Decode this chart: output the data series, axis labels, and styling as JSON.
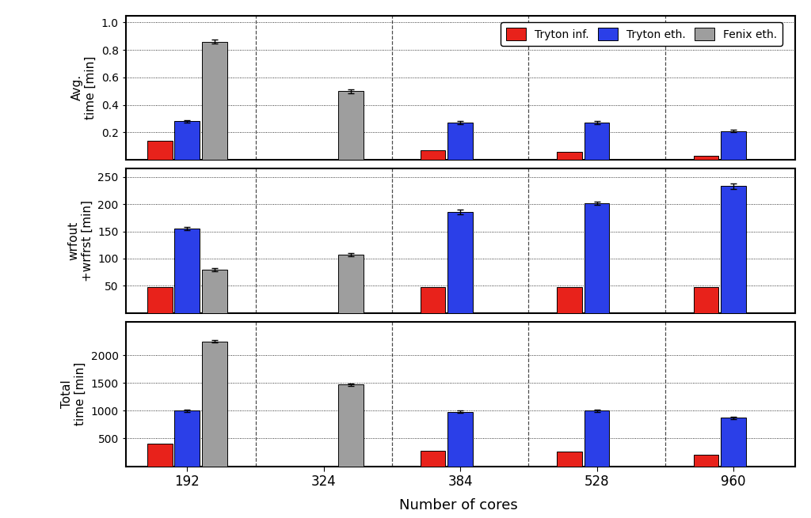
{
  "cores": [
    192,
    324,
    384,
    528,
    960
  ],
  "panel1_ylabel": "Avg.\ntime [min]",
  "panel2_ylabel": "wrfout\n+wrfrst [min]",
  "panel3_ylabel": "Total\ntime [min]",
  "xlabel": "Number of cores",
  "legend_labels": [
    "Tryton inf.",
    "Tryton eth.",
    "Fenix eth."
  ],
  "bar_colors": [
    "#e8221b",
    "#2b3fe8",
    "#9e9e9e"
  ],
  "panel1_data": {
    "tryton_inf": [
      0.14,
      null,
      0.07,
      0.06,
      0.03
    ],
    "tryton_eth": [
      0.28,
      null,
      0.27,
      0.27,
      0.21
    ],
    "fenix_eth": [
      0.86,
      0.5,
      null,
      null,
      null
    ]
  },
  "panel2_data": {
    "tryton_inf": [
      47.0,
      null,
      47.0,
      47.0,
      47.0
    ],
    "tryton_eth": [
      155.0,
      null,
      186.0,
      202.0,
      233.0
    ],
    "fenix_eth": [
      80.0,
      107.0,
      null,
      null,
      null
    ]
  },
  "panel3_data": {
    "tryton_inf": [
      400.0,
      null,
      280.0,
      260.0,
      200.0
    ],
    "tryton_eth": [
      1000.0,
      null,
      980.0,
      1000.0,
      870.0
    ],
    "fenix_eth": [
      2250.0,
      1470.0,
      null,
      null,
      null
    ]
  },
  "panel1_ylim": [
    0,
    1.05
  ],
  "panel1_yticks": [
    0.2,
    0.4,
    0.6,
    0.8,
    1.0
  ],
  "panel2_ylim": [
    0,
    265
  ],
  "panel2_yticks": [
    50,
    100,
    150,
    200,
    250
  ],
  "panel3_ylim": [
    0,
    2600
  ],
  "panel3_yticks": [
    500,
    1000,
    1500,
    2000
  ],
  "bar_width": 0.2,
  "bg_color": "#ffffff",
  "panel1_yerr_inf": [
    null,
    null,
    null,
    null,
    null
  ],
  "panel1_yerr_eth": [
    0.01,
    null,
    0.01,
    0.01,
    0.008
  ],
  "panel1_yerr_fenix": [
    0.015,
    0.015,
    null,
    null,
    null
  ],
  "panel2_yerr_inf": [
    null,
    null,
    null,
    null,
    null
  ],
  "panel2_yerr_eth": [
    3.0,
    null,
    4.0,
    3.0,
    5.0
  ],
  "panel2_yerr_fenix": [
    3.0,
    3.0,
    null,
    null,
    null
  ],
  "panel3_yerr_inf": [
    null,
    null,
    null,
    null,
    null
  ],
  "panel3_yerr_eth": [
    20.0,
    null,
    20.0,
    20.0,
    15.0
  ],
  "panel3_yerr_fenix": [
    25.0,
    20.0,
    null,
    null,
    null
  ]
}
